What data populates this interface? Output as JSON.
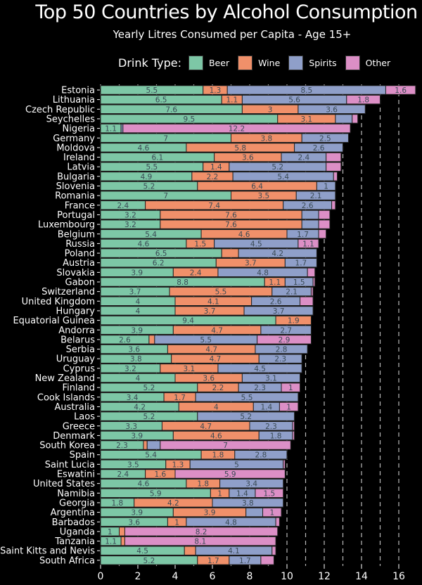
{
  "chart_data": {
    "type": "bar",
    "orientation": "horizontal",
    "stacked": true,
    "title": "Top 50 Countries by Alcohol Consumption",
    "subtitle": "Yearly Litres Consumed per Capita - Age 15+",
    "legend_title": "Drink Type:",
    "legend_placement": "top",
    "xlim": [
      0,
      16
    ],
    "xticks": [
      "0",
      "2",
      "4",
      "6",
      "8",
      "10",
      "12",
      "14",
      "16"
    ],
    "grid": "dashed vertical lines at each integer",
    "series": [
      {
        "name": "Beer",
        "color": "#7dc7a6"
      },
      {
        "name": "Wine",
        "color": "#f0906a"
      },
      {
        "name": "Spirits",
        "color": "#8f9fc9"
      },
      {
        "name": "Other",
        "color": "#dc8fc6"
      }
    ],
    "categories": [
      "Estonia",
      "Lithuania",
      "Czech Republic",
      "Seychelles",
      "Nigeria",
      "Germany",
      "Moldova",
      "Ireland",
      "Latvia",
      "Bulgaria",
      "Slovenia",
      "Romania",
      "France",
      "Portugal",
      "Luxembourg",
      "Belgium",
      "Russia",
      "Poland",
      "Austria",
      "Slovakia",
      "Gabon",
      "Switzerland",
      "United Kingdom",
      "Hungary",
      "Equatorial Guinea",
      "Andorra",
      "Belarus",
      "Serbia",
      "Uruguay",
      "Cyprus",
      "New Zealand",
      "Finland",
      "Cook Islands",
      "Australia",
      "Laos",
      "Greece",
      "Denmark",
      "South Korea",
      "Spain",
      "Saint Lucia",
      "Eswatini",
      "United States",
      "Namibia",
      "Georgia",
      "Argentina",
      "Barbados",
      "Uganda",
      "Tanzania",
      "Saint Kitts and Nevis",
      "South Africa"
    ],
    "values": [
      [
        5.5,
        1.3,
        8.5,
        1.6
      ],
      [
        6.5,
        1.1,
        5.6,
        1.8
      ],
      [
        7.6,
        3,
        3.6,
        0
      ],
      [
        9.5,
        3.1,
        0.9,
        0.3
      ],
      [
        1.1,
        0,
        0.1,
        12.2
      ],
      [
        7,
        3.8,
        2.5,
        0
      ],
      [
        4.6,
        5.8,
        2.6,
        0
      ],
      [
        6.1,
        3.6,
        2.4,
        0.8
      ],
      [
        5.5,
        1.4,
        5.2,
        0.8
      ],
      [
        4.9,
        2.2,
        5.4,
        0.2
      ],
      [
        5.2,
        6.4,
        1,
        0
      ],
      [
        7,
        3.5,
        2.1,
        0
      ],
      [
        2.4,
        7.4,
        2.6,
        0.2
      ],
      [
        3.2,
        7.6,
        0.9,
        0.6
      ],
      [
        3.2,
        7.6,
        0.9,
        0.6
      ],
      [
        5.4,
        4.6,
        1.7,
        0.4
      ],
      [
        4.6,
        1.5,
        4.5,
        1.1
      ],
      [
        6.5,
        0.9,
        4.2,
        0
      ],
      [
        6.2,
        3.7,
        1.7,
        0
      ],
      [
        3.9,
        2.4,
        4.8,
        0.4
      ],
      [
        8.8,
        1.1,
        1.5,
        0.1
      ],
      [
        3.7,
        5.5,
        2.1,
        0.1
      ],
      [
        4,
        4.1,
        2.6,
        0.7
      ],
      [
        4,
        3.7,
        3.7,
        0
      ],
      [
        9.4,
        1.9,
        0,
        0
      ],
      [
        3.9,
        4.7,
        2.7,
        0
      ],
      [
        2.6,
        0.3,
        5.5,
        2.9
      ],
      [
        3.6,
        4.7,
        2.8,
        0
      ],
      [
        3.8,
        4.7,
        2.3,
        0
      ],
      [
        3.2,
        3.1,
        4.5,
        0
      ],
      [
        4,
        3.6,
        3.1,
        0
      ],
      [
        5.2,
        2.2,
        2.3,
        1
      ],
      [
        3.4,
        1.7,
        5.5,
        0
      ],
      [
        4.2,
        4,
        1.4,
        1
      ],
      [
        5.2,
        0,
        5.2,
        0
      ],
      [
        3.3,
        4.7,
        2.3,
        0.1
      ],
      [
        3.9,
        4.6,
        1.8,
        0.1
      ],
      [
        2.3,
        0.2,
        0.7,
        7
      ],
      [
        5.4,
        1.8,
        2.8,
        0
      ],
      [
        3.5,
        1.3,
        5,
        0.1
      ],
      [
        2.4,
        1.6,
        0,
        5.9
      ],
      [
        4.6,
        1.8,
        3.4,
        0
      ],
      [
        5.9,
        1,
        1.4,
        1.5
      ],
      [
        1.8,
        4.2,
        3.8,
        0
      ],
      [
        3.9,
        3.9,
        0.9,
        1
      ],
      [
        3.6,
        1,
        4.8,
        0.2
      ],
      [
        1,
        0.3,
        0,
        8.2
      ],
      [
        1.1,
        0.2,
        0,
        8.1
      ],
      [
        4.5,
        0.6,
        4.1,
        0.2
      ],
      [
        5.2,
        1.7,
        1.7,
        0.7
      ]
    ]
  }
}
